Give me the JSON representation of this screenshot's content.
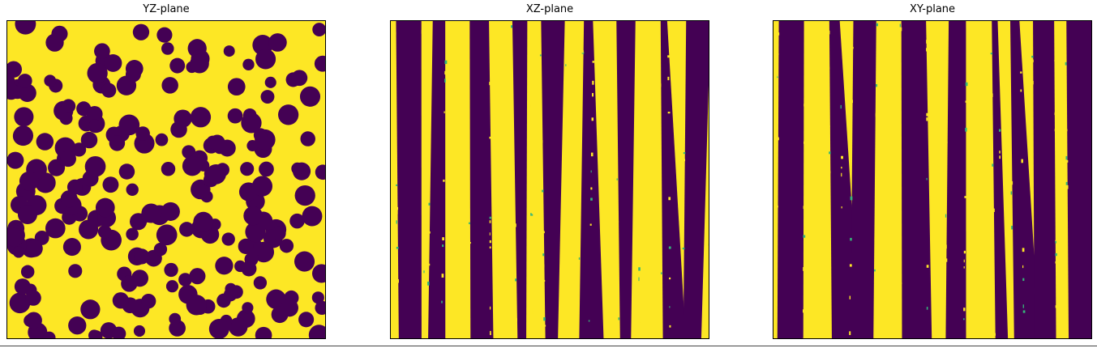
{
  "figure": {
    "panels": [
      {
        "title": "YZ-plane",
        "pattern": "blobs"
      },
      {
        "title": "XZ-plane",
        "pattern": "stripes"
      },
      {
        "title": "XY-plane",
        "pattern": "stripes"
      }
    ],
    "colors": {
      "foreground": "#fde725",
      "background": "#440154",
      "accent": "#35b779"
    }
  }
}
